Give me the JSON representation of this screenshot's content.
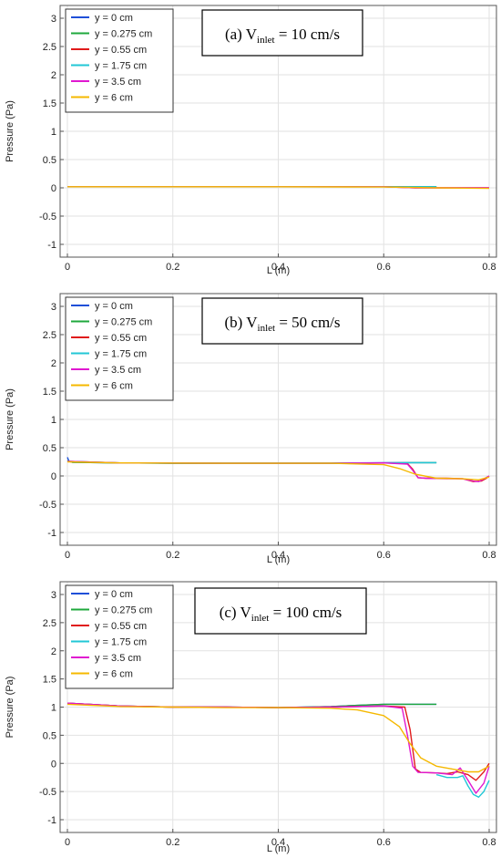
{
  "series_colors": [
    "#1f4fd8",
    "#1fa83c",
    "#e01b1b",
    "#22c7d6",
    "#e018d0",
    "#f5b800"
  ],
  "chart_data": [
    {
      "type": "line",
      "title": {
        "pre": "(a) V",
        "sub": "inlet",
        "post": " = 10 cm/s"
      },
      "xlabel": "L (m)",
      "ylabel": "Pressure (Pa)",
      "xlim": [
        0,
        0.8
      ],
      "ylim": [
        -1,
        3
      ],
      "xticks": [
        "0",
        "0.2",
        "0.4",
        "0.6",
        "0.8"
      ],
      "yticks": [
        "-1",
        "-0.5",
        "0",
        "0.5",
        "1",
        "1.5",
        "2",
        "2.5",
        "3"
      ],
      "grid": true,
      "legend_position": "top-left",
      "series": [
        {
          "name": "y = 0 cm",
          "x": [
            0,
            0.2,
            0.4,
            0.6,
            0.7
          ],
          "y": [
            0.02,
            0.02,
            0.02,
            0.02,
            0.02
          ]
        },
        {
          "name": "y = 0.275 cm",
          "x": [
            0,
            0.2,
            0.4,
            0.6,
            0.7
          ],
          "y": [
            0.02,
            0.02,
            0.02,
            0.02,
            0.02
          ]
        },
        {
          "name": "y = 0.55 cm",
          "x": [
            0,
            0.2,
            0.4,
            0.6,
            0.66,
            0.7,
            0.75,
            0.8
          ],
          "y": [
            0.02,
            0.02,
            0.02,
            0.02,
            0.0,
            0.0,
            0.0,
            0.0
          ]
        },
        {
          "name": "y = 1.75 cm",
          "x": [
            0,
            0.2,
            0.4,
            0.6,
            0.7
          ],
          "y": [
            0.02,
            0.02,
            0.02,
            0.02,
            0.02
          ]
        },
        {
          "name": "y = 3.5 cm",
          "x": [
            0,
            0.2,
            0.4,
            0.6,
            0.66,
            0.7,
            0.75,
            0.8
          ],
          "y": [
            0.02,
            0.02,
            0.02,
            0.02,
            0.0,
            0.0,
            0.0,
            0.0
          ]
        },
        {
          "name": "y = 6 cm",
          "x": [
            0,
            0.2,
            0.4,
            0.6,
            0.7,
            0.8
          ],
          "y": [
            0.02,
            0.02,
            0.02,
            0.015,
            0.0,
            -0.01
          ]
        }
      ]
    },
    {
      "type": "line",
      "title": {
        "pre": "(b) V",
        "sub": "inlet",
        "post": " = 50 cm/s"
      },
      "xlabel": "L (m)",
      "ylabel": "Pressure (Pa)",
      "xlim": [
        0,
        0.8
      ],
      "ylim": [
        -1,
        3
      ],
      "xticks": [
        "0",
        "0.2",
        "0.4",
        "0.6",
        "0.8"
      ],
      "yticks": [
        "-1",
        "-0.5",
        "0",
        "0.5",
        "1",
        "1.5",
        "2",
        "2.5",
        "3"
      ],
      "grid": true,
      "legend_position": "top-left",
      "series": [
        {
          "name": "y = 0 cm",
          "x": [
            0,
            0.003,
            0.01,
            0.1,
            0.2,
            0.3,
            0.4,
            0.5,
            0.6,
            0.65,
            0.7
          ],
          "y": [
            0.33,
            0.26,
            0.24,
            0.23,
            0.225,
            0.225,
            0.225,
            0.225,
            0.235,
            0.235,
            0.235
          ]
        },
        {
          "name": "y = 0.275 cm",
          "x": [
            0,
            0.01,
            0.1,
            0.2,
            0.3,
            0.4,
            0.5,
            0.6,
            0.65,
            0.7
          ],
          "y": [
            0.27,
            0.24,
            0.23,
            0.225,
            0.225,
            0.225,
            0.225,
            0.23,
            0.235,
            0.235
          ]
        },
        {
          "name": "y = 0.55 cm",
          "x": [
            0,
            0.1,
            0.3,
            0.5,
            0.6,
            0.645,
            0.655,
            0.665,
            0.68,
            0.72,
            0.75,
            0.77,
            0.785,
            0.795,
            0.8
          ],
          "y": [
            0.26,
            0.23,
            0.225,
            0.225,
            0.23,
            0.22,
            0.12,
            -0.03,
            -0.04,
            -0.04,
            -0.05,
            -0.1,
            -0.09,
            -0.04,
            0.0
          ]
        },
        {
          "name": "y = 1.75 cm",
          "x": [
            0,
            0.1,
            0.3,
            0.5,
            0.6,
            0.65,
            0.7
          ],
          "y": [
            0.26,
            0.23,
            0.225,
            0.225,
            0.23,
            0.235,
            0.235
          ]
        },
        {
          "name": "y = 3.5 cm",
          "x": [
            0,
            0.1,
            0.3,
            0.5,
            0.6,
            0.645,
            0.655,
            0.665,
            0.68,
            0.72,
            0.75,
            0.77,
            0.78,
            0.79,
            0.8
          ],
          "y": [
            0.26,
            0.23,
            0.225,
            0.225,
            0.23,
            0.21,
            0.1,
            -0.03,
            -0.04,
            -0.05,
            -0.05,
            -0.09,
            -0.1,
            -0.05,
            0.0
          ]
        },
        {
          "name": "y = 6 cm",
          "x": [
            0,
            0.1,
            0.3,
            0.5,
            0.6,
            0.63,
            0.66,
            0.7,
            0.75,
            0.78,
            0.8
          ],
          "y": [
            0.25,
            0.23,
            0.225,
            0.225,
            0.2,
            0.13,
            0.03,
            -0.04,
            -0.05,
            -0.07,
            -0.02
          ]
        }
      ]
    },
    {
      "type": "line",
      "title": {
        "pre": "(c) V",
        "sub": "inlet",
        "post": " = 100 cm/s"
      },
      "xlabel": "L (m)",
      "ylabel": "Pressure (Pa)",
      "xlim": [
        0,
        0.8
      ],
      "ylim": [
        -1,
        3
      ],
      "xticks": [
        "0",
        "0.2",
        "0.4",
        "0.6",
        "0.8"
      ],
      "yticks": [
        "-1",
        "-0.5",
        "0",
        "0.5",
        "1",
        "1.5",
        "2",
        "2.5",
        "3"
      ],
      "grid": true,
      "legend_position": "top-left",
      "series": [
        {
          "name": "y = 0 cm",
          "x": [
            0,
            0.1,
            0.2,
            0.3,
            0.4,
            0.5,
            0.55,
            0.6,
            0.65,
            0.7
          ],
          "y": [
            1.07,
            1.02,
            1.0,
            1.0,
            0.99,
            1.01,
            1.03,
            1.05,
            1.05,
            1.05
          ]
        },
        {
          "name": "y = 0.275 cm",
          "x": [
            0,
            0.1,
            0.2,
            0.3,
            0.4,
            0.5,
            0.55,
            0.6,
            0.65,
            0.7
          ],
          "y": [
            1.07,
            1.02,
            1.0,
            1.0,
            0.99,
            1.01,
            1.03,
            1.05,
            1.05,
            1.05
          ]
        },
        {
          "name": "y = 0.55 cm",
          "x": [
            0,
            0.1,
            0.2,
            0.3,
            0.4,
            0.5,
            0.6,
            0.64,
            0.65,
            0.66,
            0.67,
            0.7,
            0.72,
            0.74,
            0.76,
            0.775,
            0.79,
            0.8
          ],
          "y": [
            1.07,
            1.02,
            1.0,
            1.0,
            0.99,
            1.0,
            1.02,
            1.0,
            0.6,
            -0.1,
            -0.16,
            -0.17,
            -0.18,
            -0.15,
            -0.2,
            -0.3,
            -0.15,
            0.0
          ]
        },
        {
          "name": "y = 1.75 cm",
          "x": [
            0.7,
            0.72,
            0.74,
            0.75,
            0.76,
            0.77,
            0.78,
            0.79,
            0.8
          ],
          "y": [
            -0.2,
            -0.25,
            -0.25,
            -0.22,
            -0.4,
            -0.55,
            -0.6,
            -0.5,
            -0.3
          ]
        },
        {
          "name": "y = 3.5 cm",
          "x": [
            0,
            0.1,
            0.2,
            0.3,
            0.4,
            0.5,
            0.6,
            0.635,
            0.645,
            0.655,
            0.665,
            0.7,
            0.73,
            0.745,
            0.76,
            0.775,
            0.79,
            0.8
          ],
          "y": [
            1.07,
            1.02,
            1.0,
            1.0,
            0.99,
            1.0,
            1.02,
            0.98,
            0.5,
            -0.05,
            -0.16,
            -0.17,
            -0.2,
            -0.08,
            -0.3,
            -0.53,
            -0.35,
            -0.05
          ]
        },
        {
          "name": "y = 6 cm",
          "x": [
            0,
            0.1,
            0.2,
            0.3,
            0.4,
            0.5,
            0.55,
            0.6,
            0.63,
            0.65,
            0.67,
            0.7,
            0.73,
            0.76,
            0.78,
            0.8
          ],
          "y": [
            1.05,
            1.01,
            1.0,
            0.99,
            0.99,
            0.98,
            0.95,
            0.85,
            0.65,
            0.35,
            0.1,
            -0.05,
            -0.1,
            -0.15,
            -0.15,
            -0.05
          ]
        }
      ]
    }
  ]
}
